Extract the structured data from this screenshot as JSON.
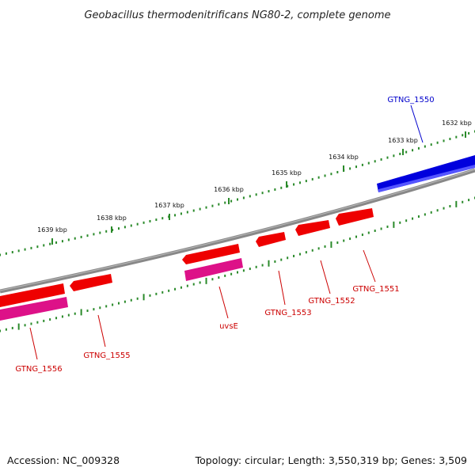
{
  "title": "Geobacillus thermodenitrificans NG80-2, complete genome",
  "footer": {
    "accession": "Accession: NC_009328",
    "summary": "Topology: circular; Length: 3,550,319 bp; Genes: 3,509"
  },
  "colors": {
    "backbone": "#888888",
    "ticks": "#2a8a2a",
    "gene_red": "#ee0000",
    "gene_pink": "#dd1188",
    "gene_blue": "#0000dd",
    "label_red": "#cc0000",
    "label_blue": "#0000cc"
  },
  "ticks": {
    "outer": [
      "1632 kbp",
      "1633 kbp",
      "1634 kbp",
      "1635 kbp",
      "1636 kbp",
      "1637 kbp",
      "1638 kbp",
      "1639 kbp"
    ]
  },
  "genes": [
    {
      "label": "GTNG_1550",
      "color": "blue",
      "strand": "forward"
    },
    {
      "label": "GTNG_1551",
      "color": "red",
      "strand": "reverse"
    },
    {
      "label": "GTNG_1552",
      "color": "red",
      "strand": "reverse"
    },
    {
      "label": "GTNG_1553",
      "color": "red",
      "strand": "reverse"
    },
    {
      "label": "uvsE",
      "color": "red",
      "strand": "reverse"
    },
    {
      "label": "GTNG_1555",
      "color": "red",
      "strand": "reverse"
    },
    {
      "label": "GTNG_1556",
      "color": "red",
      "strand": "reverse"
    }
  ]
}
